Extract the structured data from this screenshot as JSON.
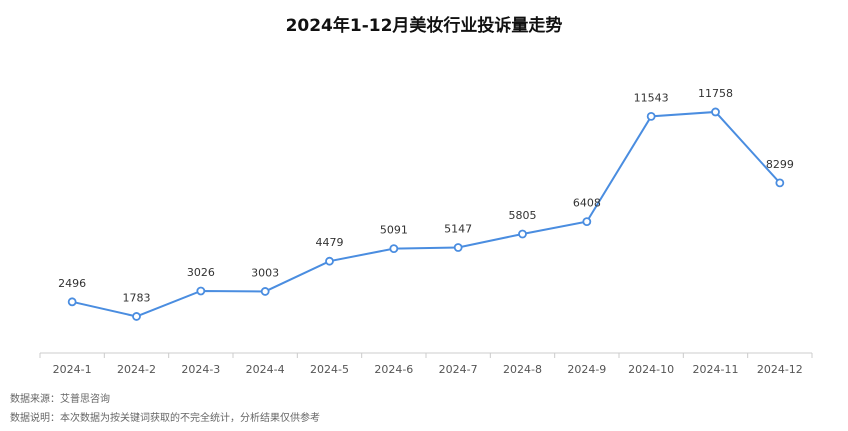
{
  "chart_data": {
    "type": "line",
    "title": "2024年1-12月美妆行业投诉量走势",
    "categories": [
      "2024-1",
      "2024-2",
      "2024-3",
      "2024-4",
      "2024-5",
      "2024-6",
      "2024-7",
      "2024-8",
      "2024-9",
      "2024-10",
      "2024-11",
      "2024-12"
    ],
    "values": [
      2496,
      1783,
      3026,
      3003,
      4479,
      5091,
      5147,
      5805,
      6408,
      11543,
      11758,
      8299
    ],
    "color": "#4a8de0",
    "ylim": [
      0,
      14000
    ],
    "notes": [
      "数据来源：艾普思咨询",
      "数据说明：本次数据为按关键词获取的不完全统计，分析结果仅供参考"
    ]
  }
}
